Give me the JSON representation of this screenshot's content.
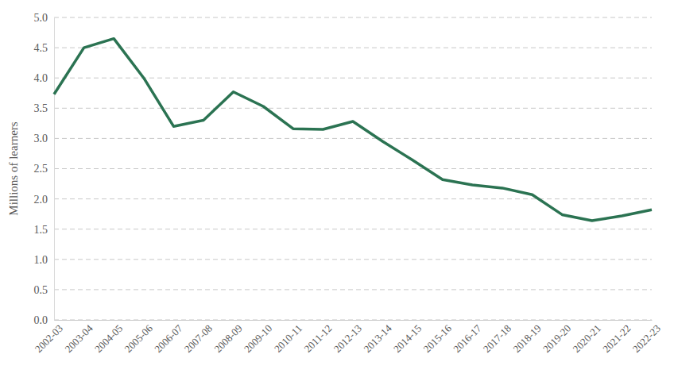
{
  "chart_data": {
    "type": "line",
    "y_label": "Millions of learners",
    "categories": [
      "2002-03",
      "2003-04",
      "2004-05",
      "2005-06",
      "2006-07",
      "2007-08",
      "2008-09",
      "2009-10",
      "2010-11",
      "2011-12",
      "2012-13",
      "2013-14",
      "2014-15",
      "2015-16",
      "2016-17",
      "2017-18",
      "2018-19",
      "2019-20",
      "2020-21",
      "2021-22",
      "2022-23"
    ],
    "values": [
      3.73,
      4.5,
      4.65,
      4.0,
      3.2,
      3.3,
      3.77,
      3.53,
      3.16,
      3.15,
      3.28,
      2.95,
      2.64,
      2.32,
      2.23,
      2.18,
      2.07,
      1.74,
      1.64,
      1.72,
      1.82
    ],
    "color": "#2b7352",
    "ylim": [
      0,
      5
    ],
    "yticks": [
      {
        "value": 0,
        "label": "0.0"
      },
      0.5,
      {
        "value": 1,
        "label": "1.0"
      },
      1.5,
      {
        "value": 2,
        "label": "2.0"
      },
      2.5,
      {
        "value": 3,
        "label": "3.0"
      },
      3.5,
      {
        "value": 4,
        "label": "4.0"
      },
      4.5,
      {
        "value": 5,
        "label": "5.0"
      }
    ],
    "grid": true
  }
}
